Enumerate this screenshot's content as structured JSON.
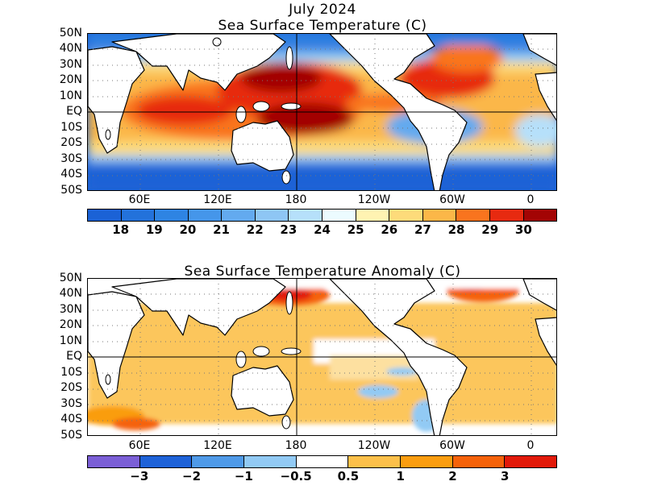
{
  "header": {
    "date": "July 2024"
  },
  "sst_map": {
    "title": "Sea Surface Temperature (C)",
    "lat_labels": [
      "50N",
      "40N",
      "30N",
      "20N",
      "10N",
      "EQ",
      "10S",
      "20S",
      "30S",
      "40S",
      "50S"
    ],
    "lon_labels": [
      "60E",
      "120E",
      "180",
      "120W",
      "60W",
      "0"
    ],
    "colorbar": {
      "colors": [
        "#1b62d6",
        "#2372db",
        "#2e84e3",
        "#4596ea",
        "#63aaef",
        "#8ec6f4",
        "#b6e0fa",
        "#ecfbff",
        "#fff3b2",
        "#fddb7a",
        "#fbb748",
        "#f9741e",
        "#e72a10",
        "#a30404"
      ],
      "labels": [
        "18",
        "19",
        "20",
        "21",
        "22",
        "23",
        "24",
        "25",
        "26",
        "27",
        "28",
        "29",
        "30"
      ]
    }
  },
  "anomaly_map": {
    "title": "Sea Surface Temperature Anomaly (C)",
    "lat_labels": [
      "50N",
      "40N",
      "30N",
      "20N",
      "10N",
      "EQ",
      "10S",
      "20S",
      "30S",
      "40S",
      "50S"
    ],
    "lon_labels": [
      "60E",
      "120E",
      "180",
      "120W",
      "60W",
      "0"
    ],
    "colorbar": {
      "colors": [
        "#7b5fd6",
        "#1e62d8",
        "#4f9ae8",
        "#92caf4",
        "#ffffff",
        "#fcc04a",
        "#fa9d10",
        "#f5620a",
        "#e21a0a"
      ],
      "labels": [
        "−3",
        "−2",
        "−1",
        "−0.5",
        "0.5",
        "1",
        "2",
        "3"
      ]
    }
  }
}
